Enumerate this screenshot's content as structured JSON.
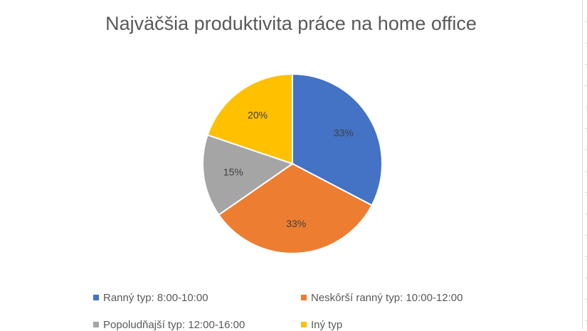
{
  "chart_data": {
    "type": "pie",
    "title": "Najväčšia produktivita práce na home office",
    "categories": [
      "Ranný typ: 8:00-10:00",
      "Neskôrší ranný typ: 10:00-12:00",
      "Popoludňajší typ: 12:00-16:00",
      "Iný typ"
    ],
    "values": [
      33,
      33,
      15,
      20
    ],
    "data_labels": [
      "33%",
      "33%",
      "15%",
      "20%"
    ],
    "colors": [
      "#4472C4",
      "#ED7D31",
      "#A5A5A5",
      "#FFC000"
    ],
    "legend_position": "bottom"
  }
}
